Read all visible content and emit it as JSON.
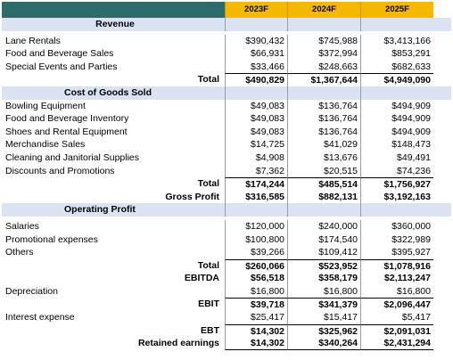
{
  "header": {
    "years": [
      "2023F",
      "2024F",
      "2025F"
    ]
  },
  "revenue": {
    "title": "Revenue",
    "rows": [
      {
        "label": "Lane Rentals",
        "values": [
          "$390,432",
          "$745,988",
          "$3,413,166"
        ]
      },
      {
        "label": "Food and Beverage Sales",
        "values": [
          "$66,931",
          "$372,994",
          "$853,291"
        ]
      },
      {
        "label": "Special Events and Parties",
        "values": [
          "$33,466",
          "$248,663",
          "$682,633"
        ]
      }
    ],
    "total": {
      "label": "Total",
      "values": [
        "$490,829",
        "$1,367,644",
        "$4,949,090"
      ]
    }
  },
  "cogs": {
    "title": "Cost of Goods Sold",
    "rows": [
      {
        "label": "Bowling Equipment",
        "values": [
          "$49,083",
          "$136,764",
          "$494,909"
        ]
      },
      {
        "label": "Food and Beverage Inventory",
        "values": [
          "$49,083",
          "$136,764",
          "$494,909"
        ]
      },
      {
        "label": "Shoes and Rental Equipment",
        "values": [
          "$49,083",
          "$136,764",
          "$494,909"
        ]
      },
      {
        "label": "Merchandise Sales",
        "values": [
          "$14,725",
          "$41,029",
          "$148,473"
        ]
      },
      {
        "label": "Cleaning and Janitorial Supplies",
        "values": [
          "$4,908",
          "$13,676",
          "$49,491"
        ]
      },
      {
        "label": "Discounts and Promotions",
        "values": [
          "$7,362",
          "$20,515",
          "$74,236"
        ]
      }
    ],
    "total": {
      "label": "Total",
      "values": [
        "$174,244",
        "$485,514",
        "$1,756,927"
      ]
    },
    "gross_profit": {
      "label": "Gross Profit",
      "values": [
        "$316,585",
        "$882,131",
        "$3,192,163"
      ]
    }
  },
  "operating": {
    "title": "Operating Profit",
    "rows": [
      {
        "label": "Salaries",
        "values": [
          "$120,000",
          "$240,000",
          "$360,000"
        ]
      },
      {
        "label": "Promotional expenses",
        "values": [
          "$100,800",
          "$174,540",
          "$322,989"
        ]
      },
      {
        "label": "Others",
        "values": [
          "$39,266",
          "$109,412",
          "$395,927"
        ]
      }
    ],
    "total": {
      "label": "Total",
      "values": [
        "$260,066",
        "$523,952",
        "$1,078,916"
      ]
    },
    "ebitda": {
      "label": "EBITDA",
      "values": [
        "$56,518",
        "$358,179",
        "$2,113,247"
      ]
    },
    "depreciation": {
      "label": "Depreciation",
      "values": [
        "$16,800",
        "$16,800",
        "$16,800"
      ]
    },
    "ebit": {
      "label": "EBIT",
      "values": [
        "$39,718",
        "$341,379",
        "$2,096,447"
      ]
    },
    "interest": {
      "label": "Interest expense",
      "values": [
        "$25,417",
        "$15,417",
        "$5,417"
      ]
    },
    "ebt": {
      "label": "EBT",
      "values": [
        "$14,302",
        "$325,962",
        "$2,091,031"
      ]
    },
    "retained": {
      "label": "Retained earnings",
      "values": [
        "$14,302",
        "$340,264",
        "$2,431,294"
      ]
    }
  }
}
